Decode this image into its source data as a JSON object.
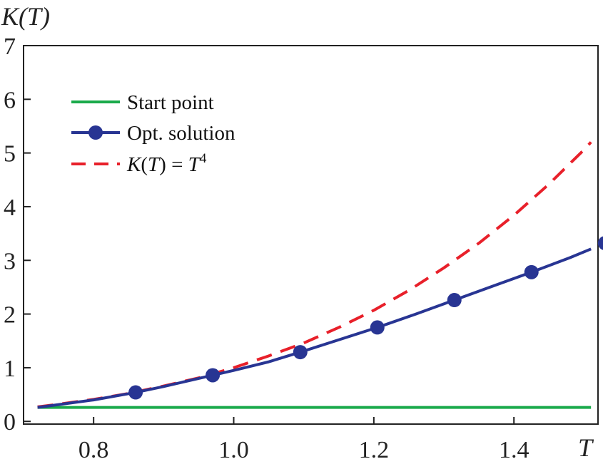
{
  "chart_data": {
    "type": "line",
    "ylabel": "K(T)",
    "xlabel": "T",
    "xlim": [
      0.7,
      1.52
    ],
    "ylim": [
      -0.05,
      7.0
    ],
    "x_ticks": [
      0.8,
      1.0,
      1.2,
      1.4
    ],
    "x_tick_labels": [
      "0.8",
      "1.0",
      "1.2",
      "1.4"
    ],
    "y_ticks": [
      0,
      1,
      2,
      3,
      4,
      5,
      6,
      7
    ],
    "y_tick_labels": [
      "0",
      "1",
      "2",
      "3",
      "4",
      "5",
      "6",
      "7"
    ],
    "grid": false,
    "legend_position": "top-left",
    "series": [
      {
        "name": "Start point",
        "style": "solid",
        "color": "#1aaa4b",
        "x": [
          0.72,
          1.6
        ],
        "y": [
          0.26,
          0.26
        ]
      },
      {
        "name": "Opt. solution",
        "style": "solid-markers",
        "color": "#283593",
        "x": [
          0.72,
          0.8,
          0.86,
          0.9,
          0.97,
          1.0,
          1.05,
          1.095,
          1.15,
          1.205,
          1.26,
          1.315,
          1.37,
          1.425,
          1.48,
          1.53,
          1.6
        ],
        "y": [
          0.26,
          0.4,
          0.54,
          0.65,
          0.86,
          0.95,
          1.11,
          1.29,
          1.52,
          1.75,
          2.0,
          2.26,
          2.52,
          2.78,
          3.05,
          3.32,
          3.7
        ],
        "marker_x": [
          0.86,
          0.97,
          1.095,
          1.205,
          1.315,
          1.425,
          1.53
        ],
        "marker_y": [
          0.54,
          0.86,
          1.29,
          1.75,
          2.26,
          2.78,
          3.32
        ]
      },
      {
        "name_parts": [
          "K",
          "(",
          "T",
          ") = ",
          "T",
          "4"
        ],
        "style": "dashed",
        "color": "#e8202a",
        "x": [
          0.72,
          0.75,
          0.8,
          0.85,
          0.9,
          0.95,
          1.0,
          1.05,
          1.1,
          1.15,
          1.2,
          1.25,
          1.3,
          1.35,
          1.4,
          1.45,
          1.5,
          1.55,
          1.6
        ],
        "y": [
          0.27,
          0.32,
          0.41,
          0.52,
          0.66,
          0.81,
          1.0,
          1.22,
          1.46,
          1.75,
          2.07,
          2.44,
          2.86,
          3.32,
          3.84,
          4.42,
          5.06,
          5.77,
          6.55
        ]
      }
    ]
  }
}
